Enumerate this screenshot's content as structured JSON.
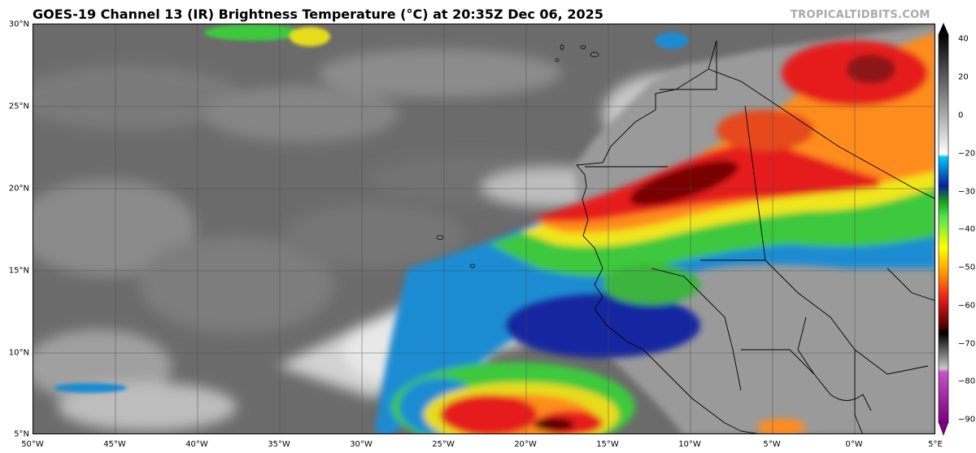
{
  "title": "GOES-19 Channel 13 (IR) Brightness Temperature (°C) at 20:35Z Dec 06, 2025",
  "credit": "TROPICALTIDBITS.COM",
  "map": {
    "lon_range": [
      -50,
      5
    ],
    "lat_range": [
      5,
      30
    ],
    "lat_labels": [
      "30°N",
      "25°N",
      "20°N",
      "15°N",
      "10°N",
      "5°N"
    ],
    "lon_labels": [
      "50°W",
      "45°W",
      "40°W",
      "35°W",
      "30°W",
      "25°W",
      "20°W",
      "15°W",
      "10°W",
      "5°W",
      "0°W",
      "5°E"
    ],
    "grid": true
  },
  "colorbar": {
    "ticks": [
      "40",
      "20",
      "0",
      "−20",
      "−30",
      "−40",
      "−50",
      "−60",
      "−70",
      "−80",
      "−90"
    ],
    "range": [
      -90,
      40
    ],
    "colors": {
      "warm": "#000000",
      "light": "#ffffff",
      "cyan": "#00c8ff",
      "blue": "#0a1e9a",
      "green": "#32c832",
      "yellow": "#ffff00",
      "orange": "#ff8c00",
      "red": "#e61e1e",
      "dark_red": "#5a0000",
      "magenta": "#c850c8"
    }
  }
}
